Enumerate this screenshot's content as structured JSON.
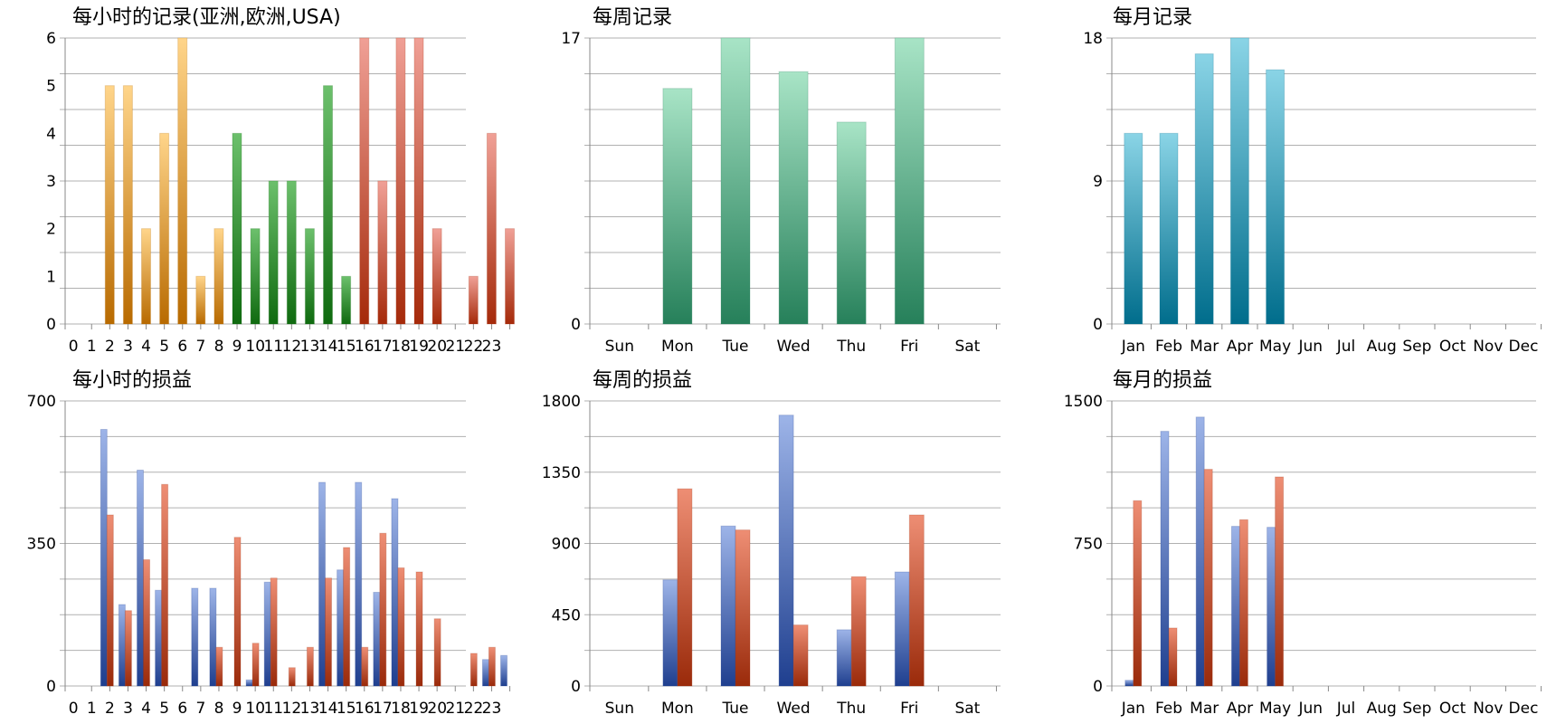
{
  "chart_data": [
    {
      "type": "bar",
      "title": "每小时的记录(亚洲,欧洲,USA)",
      "categories": [
        "0",
        "1",
        "2",
        "3",
        "4",
        "5",
        "6",
        "7",
        "8",
        "9",
        "10",
        "11",
        "12",
        "13",
        "14",
        "15",
        "16",
        "17",
        "18",
        "19",
        "20",
        "21",
        "22",
        "23"
      ],
      "values": [
        0,
        5,
        5,
        2,
        4,
        6,
        1,
        2,
        4,
        2,
        3,
        3,
        2,
        5,
        1,
        6,
        3,
        6,
        6,
        2,
        0,
        1,
        4,
        2
      ],
      "bar_colors_by_index": [
        "orange",
        "orange",
        "orange",
        "orange",
        "orange",
        "orange",
        "orange",
        "orange",
        "green",
        "green",
        "green",
        "green",
        "green",
        "green",
        "green",
        "red",
        "red",
        "red",
        "red",
        "red",
        "red",
        "red",
        "red",
        "red"
      ],
      "ylim": [
        0,
        6
      ],
      "yticks": [
        0,
        1,
        2,
        3,
        4,
        5,
        6
      ],
      "grid": true
    },
    {
      "type": "bar",
      "title": "每周记录",
      "categories": [
        "Sun",
        "Mon",
        "Tue",
        "Wed",
        "Thu",
        "Fri",
        "Sat"
      ],
      "values": [
        0,
        14,
        17,
        15,
        12,
        17,
        0
      ],
      "ylim": [
        0,
        17
      ],
      "yticks": [
        0,
        17
      ],
      "grid": true
    },
    {
      "type": "bar",
      "title": "每月记录",
      "categories": [
        "Jan",
        "Feb",
        "Mar",
        "Apr",
        "May",
        "Jun",
        "Jul",
        "Aug",
        "Sep",
        "Oct",
        "Nov",
        "Dec"
      ],
      "values": [
        12,
        12,
        17,
        18,
        16,
        0,
        0,
        0,
        0,
        0,
        0,
        0
      ],
      "ylim": [
        0,
        18
      ],
      "yticks": [
        0,
        9,
        18
      ],
      "grid": true
    },
    {
      "type": "bar",
      "title": "每小时的损益",
      "categories": [
        "0",
        "1",
        "2",
        "3",
        "4",
        "5",
        "6",
        "7",
        "8",
        "9",
        "10",
        "11",
        "12",
        "13",
        "14",
        "15",
        "16",
        "17",
        "18",
        "19",
        "20",
        "21",
        "22",
        "23"
      ],
      "series": [
        {
          "values": [
            0,
            630,
            200,
            530,
            235,
            0,
            240,
            240,
            0,
            15,
            255,
            0,
            0,
            500,
            285,
            500,
            230,
            460,
            0,
            0,
            0,
            0,
            65,
            75
          ]
        },
        {
          "values": [
            0,
            420,
            185,
            310,
            495,
            0,
            0,
            95,
            365,
            105,
            265,
            45,
            95,
            265,
            340,
            95,
            375,
            290,
            280,
            165,
            0,
            80,
            95,
            0
          ]
        }
      ],
      "ylim": [
        0,
        700
      ],
      "yticks": [
        0,
        350,
        700
      ],
      "grid": true
    },
    {
      "type": "bar",
      "title": "每周的损益",
      "categories": [
        "Sun",
        "Mon",
        "Tue",
        "Wed",
        "Thu",
        "Fri",
        "Sat"
      ],
      "series": [
        {
          "values": [
            0,
            670,
            1010,
            1710,
            355,
            720,
            0
          ]
        },
        {
          "values": [
            0,
            1245,
            985,
            385,
            690,
            1080,
            0
          ]
        }
      ],
      "ylim": [
        0,
        1800
      ],
      "yticks": [
        0,
        450,
        900,
        1350,
        1800
      ],
      "grid": true
    },
    {
      "type": "bar",
      "title": "每月的损益",
      "categories": [
        "Jan",
        "Feb",
        "Mar",
        "Apr",
        "May",
        "Jun",
        "Jul",
        "Aug",
        "Sep",
        "Oct",
        "Nov",
        "Dec"
      ],
      "series": [
        {
          "values": [
            30,
            1340,
            1415,
            840,
            835,
            0,
            0,
            0,
            0,
            0,
            0,
            0
          ]
        },
        {
          "values": [
            975,
            305,
            1140,
            875,
            1100,
            0,
            0,
            0,
            0,
            0,
            0,
            0
          ]
        }
      ],
      "ylim": [
        0,
        1500
      ],
      "yticks": [
        0,
        750,
        1500
      ],
      "grid": true
    }
  ],
  "colors": {
    "orange": [
      "#ffd58a",
      "#b86a00"
    ],
    "green": [
      "#6cc06c",
      "#0f6a0f"
    ],
    "red": [
      "#f0a096",
      "#a52a0a"
    ],
    "teal_green": [
      "#a8e4c6",
      "#26805a"
    ],
    "teal_blue": [
      "#8ad4e6",
      "#006d8c"
    ],
    "blue": [
      "#9db4e8",
      "#1f3f8f"
    ],
    "brick": [
      "#ee8e74",
      "#9a2a0a"
    ],
    "grid": "#b0b0b0",
    "axis": "#888888"
  }
}
